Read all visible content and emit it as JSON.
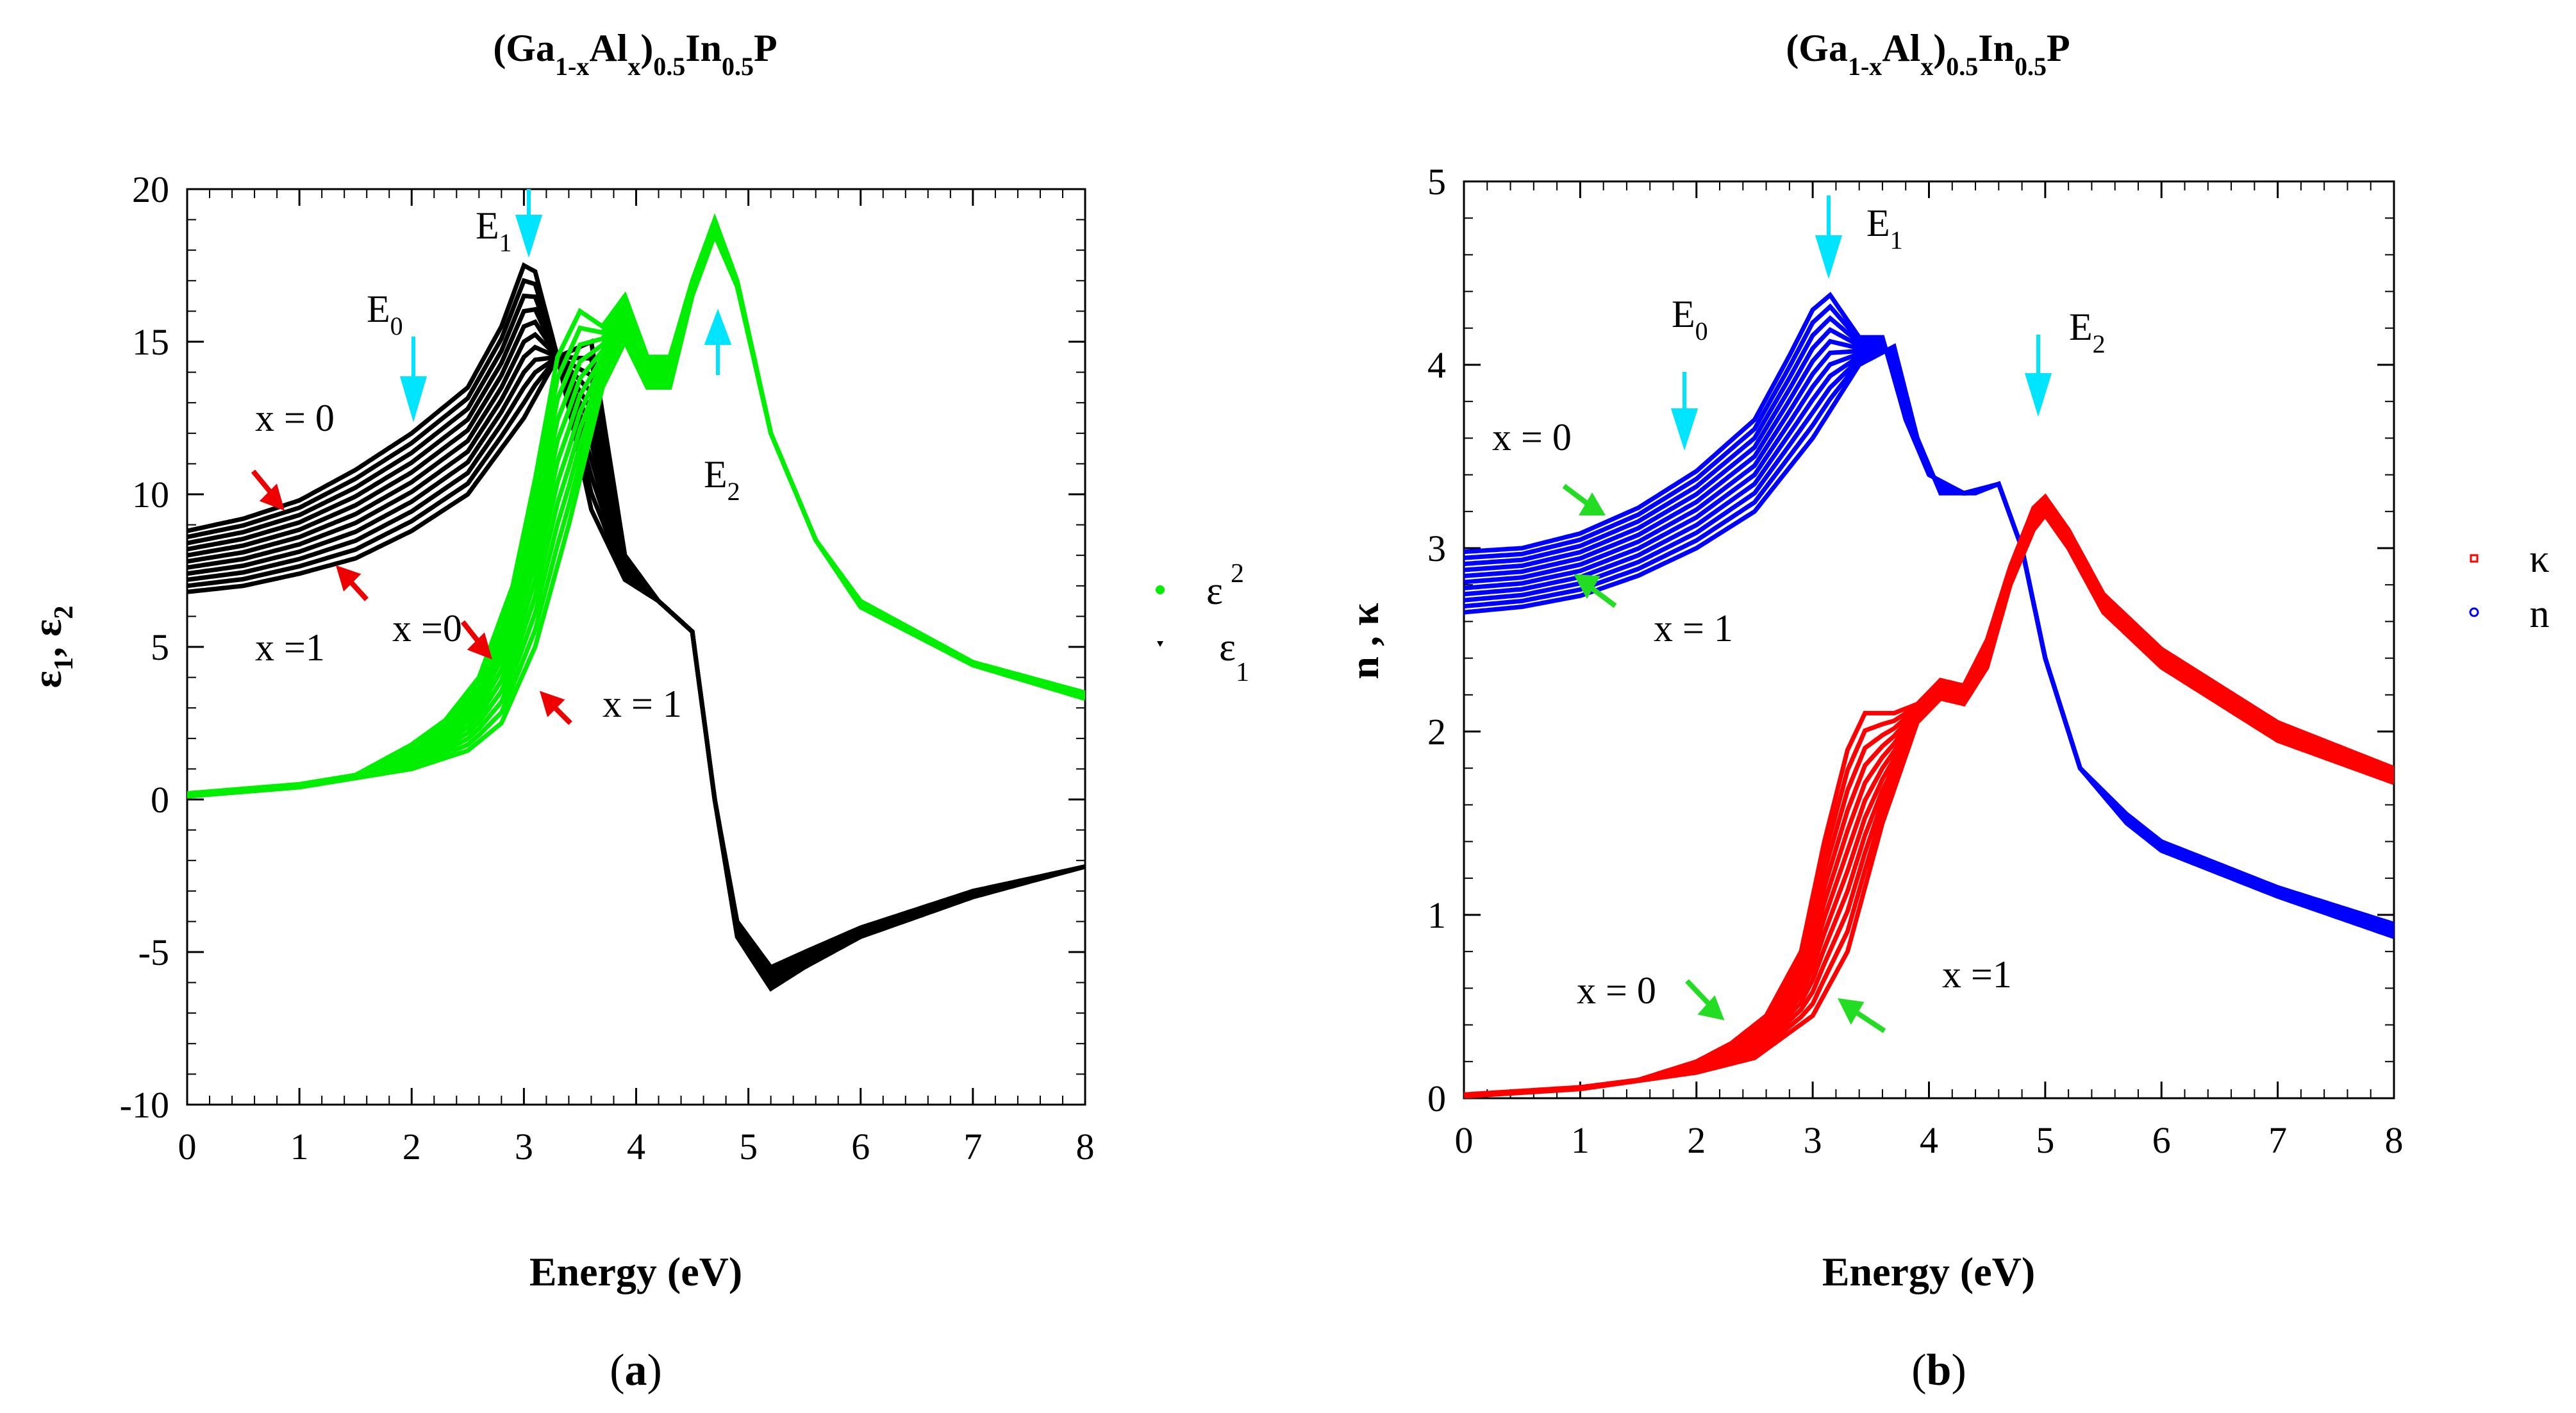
{
  "chart_data": [
    {
      "type": "line",
      "panel_label_prefix": "(",
      "panel_label_letter": "a",
      "panel_label_suffix": ")",
      "title": {
        "base": "(Ga",
        "sub1": "1-x",
        "mid": "Al",
        "sub2": "x",
        "close": ")",
        "sub3": "0.5",
        "mid2": "In",
        "sub4": "0.5",
        "end": "P"
      },
      "xlabel": "Energy (eV)",
      "ylabel": {
        "sym1": "ε",
        "sub1": "1",
        "sep": ", ",
        "sym2": "ε",
        "sub2": "2"
      },
      "xlim": [
        0,
        8
      ],
      "ylim": [
        -10,
        20
      ],
      "xticks": [
        "0",
        "1",
        "2",
        "3",
        "4",
        "5",
        "6",
        "7",
        "8"
      ],
      "yticks": [
        "-10",
        "-5",
        "0",
        "5",
        "10",
        "15",
        "20"
      ],
      "legend": [
        {
          "symbol": "ε",
          "sub": "2",
          "color": "#00ee00",
          "marker": "dot"
        },
        {
          "symbol": "ε",
          "sub": "1",
          "color": "#000000",
          "marker": "tri"
        }
      ],
      "series": [
        {
          "name": "ε1 (x = 0)",
          "color": "#000000",
          "x": [
            0,
            0.5,
            1,
            1.5,
            2,
            2.5,
            2.8,
            3.0,
            3.1,
            3.3,
            3.6,
            3.9,
            4.2,
            4.5,
            4.7,
            4.9,
            5.2,
            5.5,
            6,
            7,
            8
          ],
          "y": [
            8.8,
            9.2,
            9.8,
            10.8,
            12,
            13.5,
            15.5,
            17.5,
            17.3,
            14.5,
            9.5,
            7.2,
            6.5,
            5.5,
            0,
            -4.5,
            -6.2,
            -5.5,
            -4.5,
            -3.2,
            -2.2
          ]
        },
        {
          "name": "ε1 (x = 1)",
          "color": "#000000",
          "x": [
            0,
            0.5,
            1,
            1.5,
            2,
            2.5,
            3.0,
            3.3,
            3.6,
            3.9,
            4.2,
            4.5,
            4.7,
            4.9,
            5.2,
            5.5,
            6,
            7,
            8
          ],
          "y": [
            6.8,
            7.0,
            7.4,
            7.9,
            8.8,
            10.0,
            12.5,
            14.5,
            15.0,
            8.0,
            6.5,
            5.5,
            0,
            -4.0,
            -5.5,
            -5.0,
            -4.2,
            -3.0,
            -2.2
          ]
        },
        {
          "name": "ε2 (x = 0)",
          "color": "#00ee00",
          "x": [
            0,
            1,
            1.5,
            2,
            2.3,
            2.6,
            2.9,
            3.1,
            3.3,
            3.5,
            3.7,
            3.9,
            4.1,
            4.3,
            4.5,
            4.7,
            4.9,
            5.2,
            5.6,
            6,
            7,
            8
          ],
          "y": [
            0.2,
            0.5,
            0.8,
            1.8,
            2.6,
            4.0,
            7.0,
            10.5,
            14.5,
            16,
            15.5,
            16.5,
            14.5,
            14.5,
            17,
            19,
            17,
            12,
            8.5,
            6.5,
            4.5,
            3.5
          ]
        },
        {
          "name": "ε2 (x = 1)",
          "color": "#00ee00",
          "x": [
            0,
            1,
            2,
            2.5,
            2.8,
            3.1,
            3.4,
            3.7,
            3.9,
            4.1,
            4.3,
            4.5,
            4.7,
            4.9,
            5.2,
            5.6,
            6,
            7,
            8
          ],
          "y": [
            0.1,
            0.4,
            1.0,
            1.6,
            2.5,
            5.0,
            9.0,
            13.5,
            15.0,
            13.5,
            13.5,
            16.5,
            18.5,
            16.8,
            12,
            8.5,
            6.3,
            4.4,
            3.3
          ]
        }
      ],
      "annotations": [
        {
          "base": "E",
          "sub": "0",
          "x": 2.0,
          "y": 12
        },
        {
          "base": "E",
          "sub": "1",
          "x": 3.05,
          "y": 18
        },
        {
          "base": "E",
          "sub": "2",
          "x": 4.75,
          "y": 16
        },
        {
          "text": "x = 0"
        },
        {
          "text": "x =1"
        },
        {
          "text": "x =0"
        },
        {
          "text": "x = 1"
        }
      ]
    },
    {
      "type": "line",
      "panel_label_prefix": "(",
      "panel_label_letter": "b",
      "panel_label_suffix": ")",
      "title": {
        "base": "(Ga",
        "sub1": "1-x",
        "mid": "Al",
        "sub2": "x",
        "close": ")",
        "sub3": "0.5",
        "mid2": "In",
        "sub4": "0.5",
        "end": "P"
      },
      "xlabel": "Energy (eV)",
      "ylabel": {
        "text": "n , κ"
      },
      "xlim": [
        0,
        8
      ],
      "ylim": [
        0,
        5
      ],
      "xticks": [
        "0",
        "1",
        "2",
        "3",
        "4",
        "5",
        "6",
        "7",
        "8"
      ],
      "yticks": [
        "0",
        "1",
        "2",
        "3",
        "4",
        "5"
      ],
      "legend": [
        {
          "symbol": "κ",
          "color": "#ff0000",
          "marker": "square"
        },
        {
          "symbol": "n",
          "color": "#0000ff",
          "marker": "circle"
        }
      ],
      "series": [
        {
          "name": "n (x = 0)",
          "color": "#0000ff",
          "x": [
            0,
            0.5,
            1,
            1.5,
            2,
            2.5,
            2.8,
            3.0,
            3.15,
            3.4,
            3.6,
            3.8,
            4.0,
            4.3,
            4.6,
            4.8,
            5.0,
            5.3,
            5.7,
            6,
            7,
            8
          ],
          "y": [
            2.98,
            3.0,
            3.08,
            3.22,
            3.42,
            3.7,
            4.05,
            4.3,
            4.38,
            4.15,
            4.15,
            3.7,
            3.4,
            3.3,
            3.35,
            3.0,
            2.4,
            1.8,
            1.55,
            1.4,
            1.15,
            0.95
          ]
        },
        {
          "name": "n (x = 1)",
          "color": "#0000ff",
          "x": [
            0,
            0.5,
            1,
            1.5,
            2,
            2.5,
            3.0,
            3.4,
            3.7,
            3.9,
            4.1,
            4.4,
            4.6,
            4.8,
            5.0,
            5.3,
            5.7,
            6,
            7,
            8
          ],
          "y": [
            2.65,
            2.68,
            2.74,
            2.85,
            3.0,
            3.2,
            3.6,
            4.0,
            4.1,
            3.6,
            3.3,
            3.3,
            3.35,
            3.0,
            2.4,
            1.8,
            1.5,
            1.35,
            1.1,
            0.88
          ]
        },
        {
          "name": "κ (x = 0)",
          "color": "#ff0000",
          "x": [
            0,
            1,
            1.5,
            2,
            2.3,
            2.6,
            2.9,
            3.1,
            3.3,
            3.45,
            3.7,
            3.9,
            4.1,
            4.3,
            4.5,
            4.7,
            4.9,
            5.0,
            5.2,
            5.5,
            6,
            7,
            8
          ],
          "y": [
            0.02,
            0.06,
            0.1,
            0.2,
            0.3,
            0.45,
            0.8,
            1.4,
            1.9,
            2.1,
            2.1,
            2.15,
            2.28,
            2.25,
            2.5,
            2.9,
            3.22,
            3.28,
            3.1,
            2.75,
            2.45,
            2.05,
            1.8
          ]
        },
        {
          "name": "κ (x = 1)",
          "color": "#ff0000",
          "x": [
            0,
            1,
            2,
            2.5,
            3.0,
            3.3,
            3.6,
            3.9,
            4.1,
            4.3,
            4.5,
            4.7,
            4.9,
            5.0,
            5.2,
            5.5,
            6,
            7,
            8
          ],
          "y": [
            0.01,
            0.05,
            0.14,
            0.22,
            0.45,
            0.8,
            1.5,
            2.05,
            2.18,
            2.15,
            2.35,
            2.8,
            3.1,
            3.18,
            3.0,
            2.65,
            2.35,
            1.95,
            1.72
          ]
        }
      ],
      "annotations": [
        {
          "base": "E",
          "sub": "0",
          "x": 1.95,
          "y": 3.6
        },
        {
          "base": "E",
          "sub": "1",
          "x": 3.1,
          "y": 4.5
        },
        {
          "base": "E",
          "sub": "2",
          "x": 4.95,
          "y": 4.2
        },
        {
          "text": "x = 0"
        },
        {
          "text": "x = 1"
        },
        {
          "text": "x = 0"
        },
        {
          "text": "x =1"
        }
      ]
    }
  ]
}
